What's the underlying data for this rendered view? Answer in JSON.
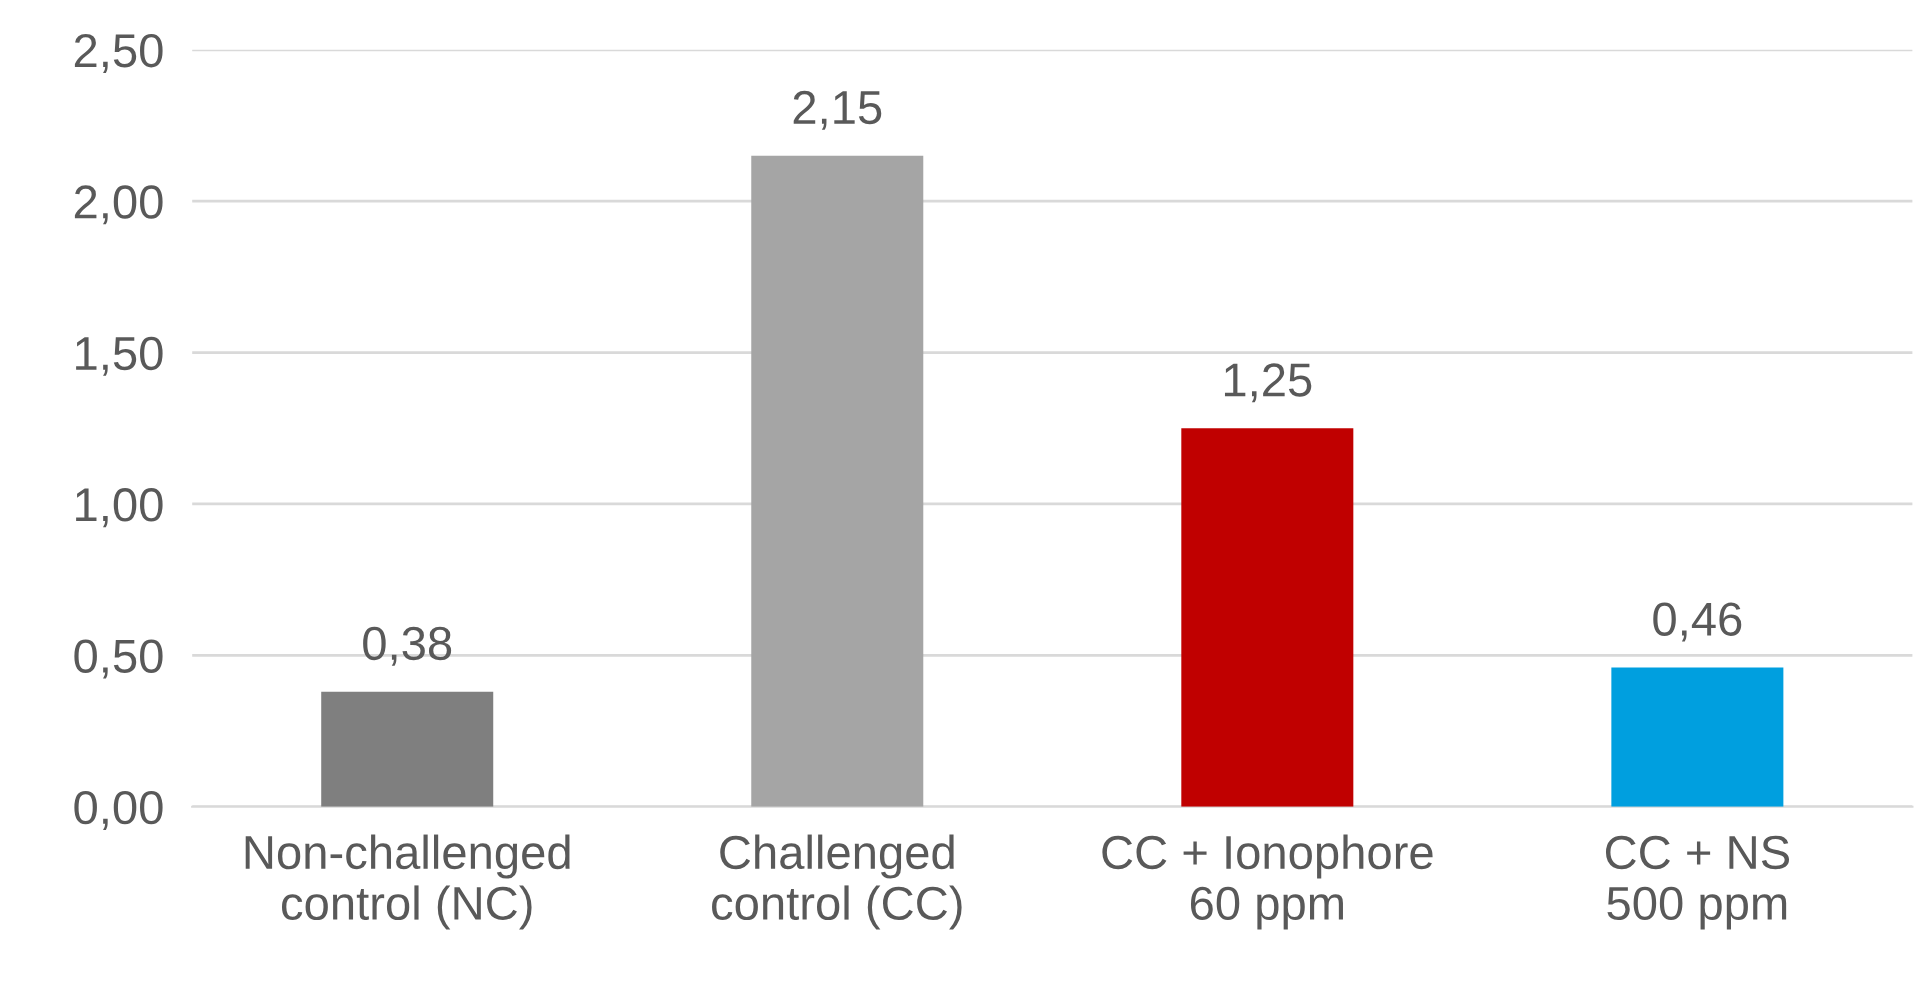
{
  "chart_data": {
    "type": "bar",
    "categories": [
      "Non-challenged\ncontrol (NC)",
      "Challenged\ncontrol (CC)",
      "CC + Ionophore\n60 ppm",
      "CC + NS\n500 ppm"
    ],
    "values": [
      0.38,
      2.15,
      1.25,
      0.46
    ],
    "colors": [
      "#7f7f7f",
      "#a5a5a5",
      "#c00000",
      "#009fdf"
    ],
    "value_labels": [
      "0,38",
      "2,15",
      "1,25",
      "0,46"
    ],
    "ylim": [
      0,
      2.5
    ],
    "yticks": [
      {
        "value": 0,
        "label": "0,00"
      },
      {
        "value": 0.5,
        "label": "0,50"
      },
      {
        "value": 1.0,
        "label": "1,00"
      },
      {
        "value": 1.5,
        "label": "1,50"
      },
      {
        "value": 2.0,
        "label": "2,00"
      },
      {
        "value": 2.5,
        "label": "2,50"
      }
    ],
    "grid": "y"
  }
}
